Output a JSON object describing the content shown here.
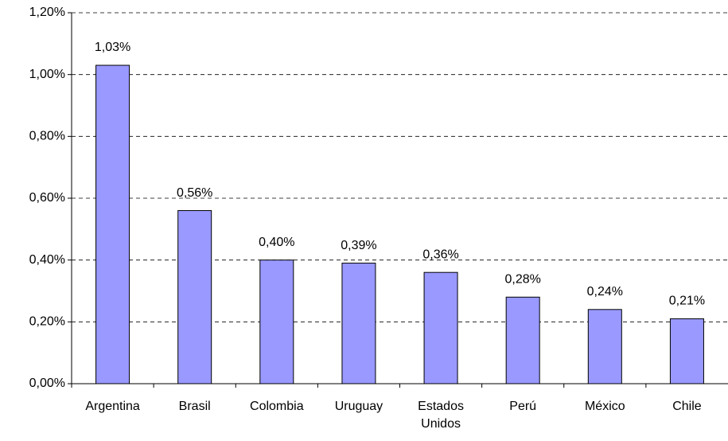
{
  "chart_data": {
    "type": "bar",
    "categories": [
      "Argentina",
      "Brasil",
      "Colombia",
      "Uruguay",
      "Estados Unidos",
      "Perú",
      "México",
      "Chile"
    ],
    "values": [
      1.03,
      0.56,
      0.4,
      0.39,
      0.36,
      0.28,
      0.24,
      0.21
    ],
    "value_labels": [
      "1,03%",
      "0,56%",
      "0,40%",
      "0,39%",
      "0,36%",
      "0,28%",
      "0,24%",
      "0,21%"
    ],
    "color": "#9999ff",
    "ylim": [
      0,
      1.2
    ],
    "yticks": [
      {
        "value": 0,
        "label": "0,00%"
      },
      {
        "value": 0.2,
        "label": "0,20%"
      },
      {
        "value": 0.4,
        "label": "0,40%"
      },
      {
        "value": 0.6,
        "label": "0,60%"
      },
      {
        "value": 0.8,
        "label": "0,80%"
      },
      {
        "value": 1.0,
        "label": "1,00%"
      },
      {
        "value": 1.2,
        "label": "1,20%"
      }
    ],
    "grid": true
  }
}
